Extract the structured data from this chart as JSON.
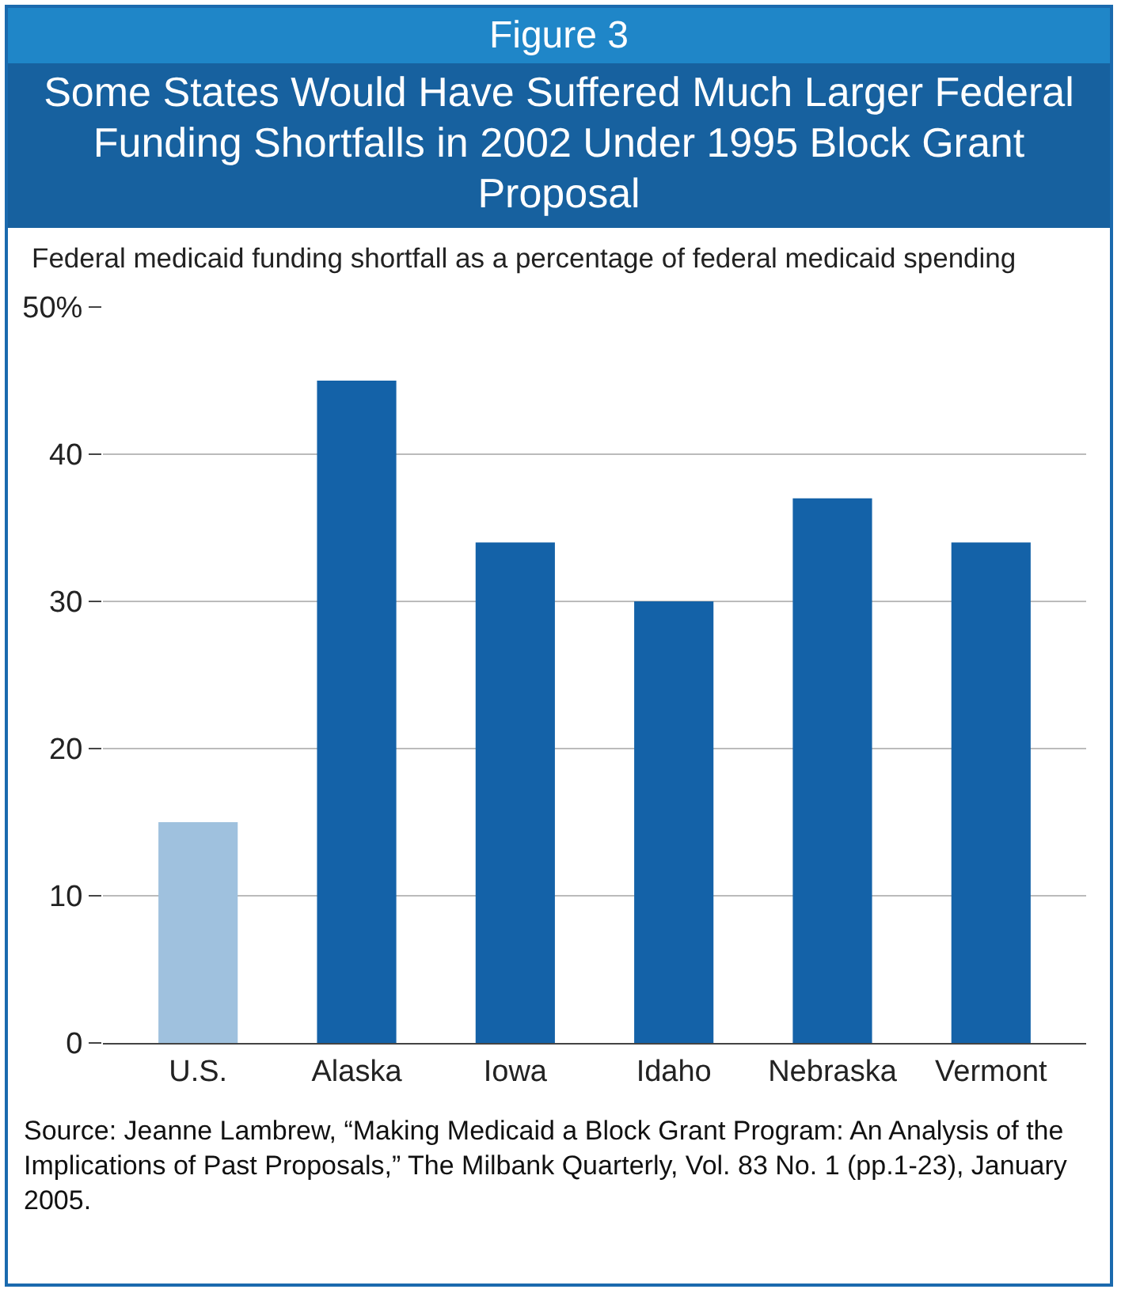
{
  "chart_data": {
    "type": "bar",
    "title": "Figure 3",
    "subtitle": "Some States Would Have Suffered Much Larger Federal Funding Shortfalls in 2002 Under 1995 Block Grant Proposal",
    "ylabel": "Federal medicaid funding shortfall as a percentage of federal medicaid spending",
    "categories": [
      "U.S.",
      "Alaska",
      "Iowa",
      "Idaho",
      "Nebraska",
      "Vermont"
    ],
    "values": [
      15,
      45,
      34,
      30,
      37,
      34
    ],
    "colors": [
      "#9fc1de",
      "#1462a8",
      "#1462a8",
      "#1462a8",
      "#1462a8",
      "#1462a8"
    ],
    "ylim": [
      0,
      50
    ],
    "yticks": [
      0,
      10,
      20,
      30,
      40,
      {
        "value": 50,
        "label": "50%"
      }
    ],
    "grid": "y",
    "annotations": [
      "Source: Jeanne Lambrew, “Making Medicaid a Block Grant Program: An Analysis of the Implications of Past Proposals,” The Milbank Quarterly, Vol. 83 No. 1 (pp.1-23), January 2005."
    ]
  }
}
